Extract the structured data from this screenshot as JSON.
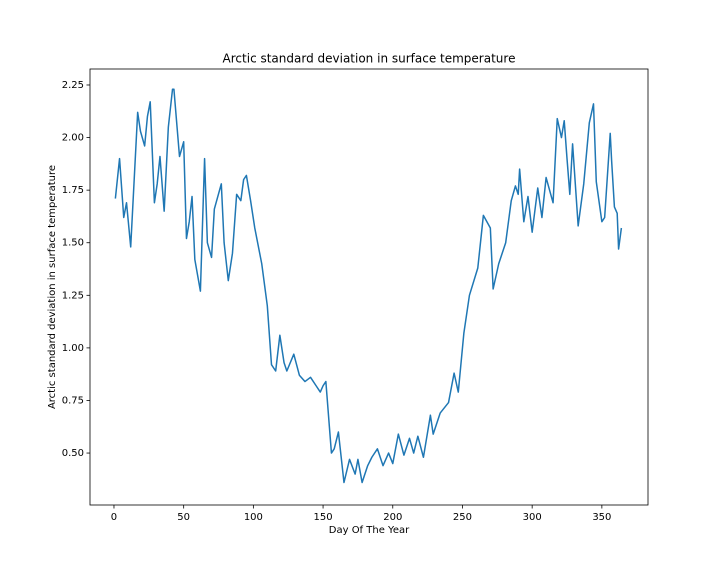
{
  "chart_data": {
    "type": "line",
    "title": "Arctic standard deviation in surface temperature",
    "xlabel": "Day Of The Year",
    "ylabel": "Arctic standard deviation in surface temperature",
    "color": "#1f77b4",
    "grid": false,
    "xlim": [
      -17.2,
      383.1
    ],
    "ylim": [
      0.253,
      2.326
    ],
    "xticks": [
      0,
      50,
      100,
      150,
      200,
      250,
      300,
      350
    ],
    "yticks": [
      {
        "value": 0.5,
        "label": "0.50"
      },
      0.75,
      {
        "value": 1,
        "label": "1.00"
      },
      1.25,
      {
        "value": 1.5,
        "label": "1.50"
      },
      1.75,
      {
        "value": 2,
        "label": "2.00"
      },
      2.25
    ],
    "x": [
      1,
      4,
      7,
      9,
      12,
      17,
      19,
      22,
      24,
      26,
      29,
      31,
      33,
      36,
      39,
      42,
      43,
      47,
      50,
      52,
      54,
      56,
      58,
      62,
      65,
      67,
      70,
      72,
      77,
      79,
      82,
      85,
      88,
      91,
      93,
      95,
      98,
      101,
      106,
      110,
      113,
      116,
      119,
      122,
      124,
      129,
      133,
      137,
      141,
      145,
      148,
      150,
      152,
      156,
      158,
      161,
      165,
      169,
      173,
      175,
      178,
      182,
      185,
      189,
      193,
      197,
      200,
      204,
      208,
      212,
      215,
      218,
      222,
      227,
      229,
      234,
      240,
      244,
      247,
      251,
      255,
      261,
      265,
      270,
      272,
      276,
      281,
      285,
      288,
      290,
      291,
      294,
      297,
      300,
      304,
      307,
      310,
      315,
      318,
      321,
      323,
      325,
      327,
      329,
      333,
      337,
      341,
      344,
      346,
      350,
      352,
      356,
      357,
      359,
      361,
      362,
      364
    ],
    "values": [
      1.71,
      1.9,
      1.62,
      1.69,
      1.48,
      2.12,
      2.03,
      1.96,
      2.1,
      2.17,
      1.69,
      1.78,
      1.91,
      1.65,
      2.05,
      2.23,
      2.23,
      1.91,
      1.98,
      1.52,
      1.6,
      1.72,
      1.42,
      1.27,
      1.9,
      1.5,
      1.43,
      1.66,
      1.78,
      1.5,
      1.32,
      1.45,
      1.73,
      1.7,
      1.8,
      1.82,
      1.7,
      1.57,
      1.4,
      1.2,
      0.92,
      0.89,
      1.06,
      0.93,
      0.89,
      0.97,
      0.87,
      0.84,
      0.86,
      0.82,
      0.79,
      0.82,
      0.84,
      0.5,
      0.52,
      0.6,
      0.36,
      0.47,
      0.4,
      0.47,
      0.36,
      0.44,
      0.48,
      0.52,
      0.44,
      0.5,
      0.45,
      0.59,
      0.49,
      0.57,
      0.5,
      0.58,
      0.48,
      0.68,
      0.59,
      0.69,
      0.74,
      0.88,
      0.79,
      1.07,
      1.25,
      1.38,
      1.63,
      1.57,
      1.28,
      1.4,
      1.5,
      1.7,
      1.77,
      1.73,
      1.85,
      1.6,
      1.72,
      1.55,
      1.76,
      1.62,
      1.81,
      1.69,
      2.09,
      2.0,
      2.08,
      1.9,
      1.73,
      1.97,
      1.58,
      1.78,
      2.07,
      2.16,
      1.79,
      1.6,
      1.62,
      2.02,
      1.89,
      1.67,
      1.64,
      1.47,
      1.57
    ]
  }
}
